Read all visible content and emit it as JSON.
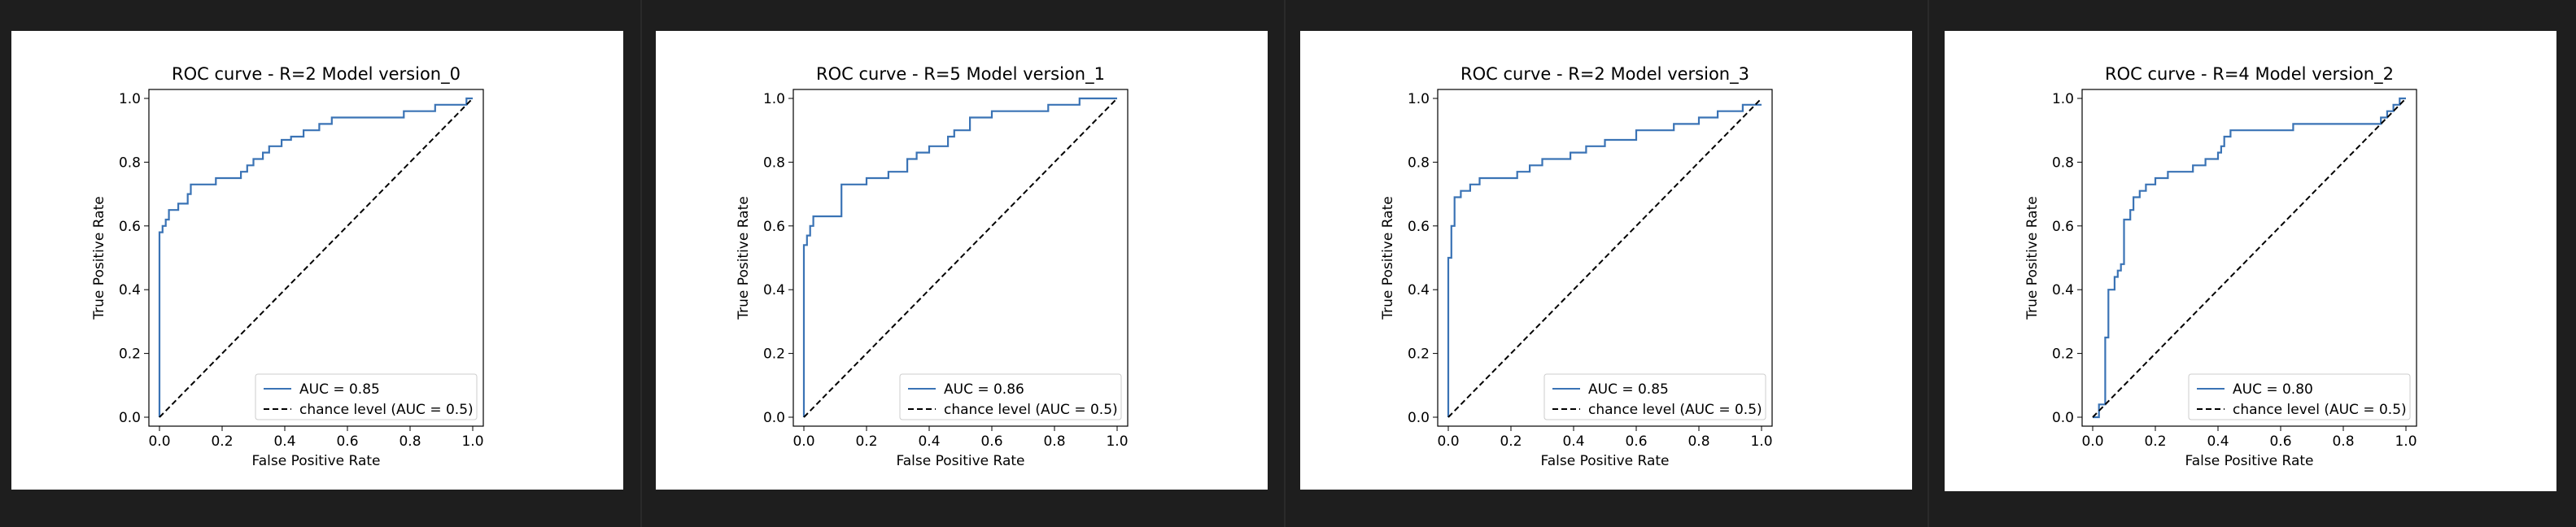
{
  "colors": {
    "roc_line": "#3a73b5",
    "chance_line": "#000000",
    "background": "#1e1e1e",
    "panel": "#ffffff"
  },
  "chart_data": [
    {
      "type": "line",
      "title": "ROC curve - R=2 Model version_0",
      "xlabel": "False Positive Rate",
      "ylabel": "True Positive Rate",
      "xlim": [
        0,
        1
      ],
      "ylim": [
        0,
        1
      ],
      "xticks": [
        "0.0",
        "0.2",
        "0.4",
        "0.6",
        "0.8",
        "1.0"
      ],
      "yticks": [
        "0.0",
        "0.2",
        "0.4",
        "0.6",
        "0.8",
        "1.0"
      ],
      "legend_position": "lower-right",
      "series": [
        {
          "name": "AUC = 0.85",
          "style": "solid",
          "x": [
            0,
            0,
            0.01,
            0.01,
            0.02,
            0.02,
            0.03,
            0.03,
            0.06,
            0.06,
            0.09,
            0.09,
            0.1,
            0.1,
            0.12,
            0.12,
            0.18,
            0.18,
            0.26,
            0.26,
            0.28,
            0.28,
            0.3,
            0.3,
            0.33,
            0.33,
            0.35,
            0.35,
            0.39,
            0.39,
            0.42,
            0.42,
            0.46,
            0.46,
            0.51,
            0.51,
            0.55,
            0.55,
            0.62,
            0.62,
            0.78,
            0.78,
            0.88,
            0.88,
            0.98,
            0.98,
            1.0
          ],
          "y": [
            0,
            0.58,
            0.58,
            0.6,
            0.6,
            0.62,
            0.62,
            0.65,
            0.65,
            0.67,
            0.67,
            0.7,
            0.7,
            0.73,
            0.73,
            0.73,
            0.73,
            0.75,
            0.75,
            0.77,
            0.77,
            0.79,
            0.79,
            0.81,
            0.81,
            0.83,
            0.83,
            0.85,
            0.85,
            0.87,
            0.87,
            0.88,
            0.88,
            0.9,
            0.9,
            0.92,
            0.92,
            0.94,
            0.94,
            0.94,
            0.94,
            0.96,
            0.96,
            0.98,
            0.98,
            1.0,
            1.0
          ]
        },
        {
          "name": "chance level (AUC = 0.5)",
          "style": "dashed",
          "x": [
            0,
            1
          ],
          "y": [
            0,
            1
          ]
        }
      ]
    },
    {
      "type": "line",
      "title": "ROC curve - R=5 Model version_1",
      "xlabel": "False Positive Rate",
      "ylabel": "True Positive Rate",
      "xlim": [
        0,
        1
      ],
      "ylim": [
        0,
        1
      ],
      "xticks": [
        "0.0",
        "0.2",
        "0.4",
        "0.6",
        "0.8",
        "1.0"
      ],
      "yticks": [
        "0.0",
        "0.2",
        "0.4",
        "0.6",
        "0.8",
        "1.0"
      ],
      "legend_position": "lower-right",
      "series": [
        {
          "name": "AUC = 0.86",
          "style": "solid",
          "x": [
            0,
            0,
            0.01,
            0.01,
            0.02,
            0.02,
            0.03,
            0.03,
            0.12,
            0.12,
            0.2,
            0.2,
            0.27,
            0.27,
            0.33,
            0.33,
            0.36,
            0.36,
            0.4,
            0.4,
            0.46,
            0.46,
            0.48,
            0.48,
            0.53,
            0.53,
            0.6,
            0.6,
            0.78,
            0.78,
            0.88,
            0.88,
            1.0
          ],
          "y": [
            0,
            0.54,
            0.54,
            0.57,
            0.57,
            0.6,
            0.6,
            0.63,
            0.63,
            0.73,
            0.73,
            0.75,
            0.75,
            0.77,
            0.77,
            0.81,
            0.81,
            0.83,
            0.83,
            0.85,
            0.85,
            0.88,
            0.88,
            0.9,
            0.9,
            0.94,
            0.94,
            0.96,
            0.96,
            0.98,
            0.98,
            1.0,
            1.0
          ]
        },
        {
          "name": "chance level (AUC = 0.5)",
          "style": "dashed",
          "x": [
            0,
            1
          ],
          "y": [
            0,
            1
          ]
        }
      ]
    },
    {
      "type": "line",
      "title": "ROC curve - R=2 Model version_3",
      "xlabel": "False Positive Rate",
      "ylabel": "True Positive Rate",
      "xlim": [
        0,
        1
      ],
      "ylim": [
        0,
        1
      ],
      "xticks": [
        "0.0",
        "0.2",
        "0.4",
        "0.6",
        "0.8",
        "1.0"
      ],
      "yticks": [
        "0.0",
        "0.2",
        "0.4",
        "0.6",
        "0.8",
        "1.0"
      ],
      "legend_position": "lower-right",
      "series": [
        {
          "name": "AUC = 0.85",
          "style": "solid",
          "x": [
            0,
            0,
            0.01,
            0.01,
            0.02,
            0.02,
            0.04,
            0.04,
            0.07,
            0.07,
            0.1,
            0.1,
            0.22,
            0.22,
            0.26,
            0.26,
            0.3,
            0.3,
            0.39,
            0.39,
            0.44,
            0.44,
            0.5,
            0.5,
            0.6,
            0.6,
            0.72,
            0.72,
            0.8,
            0.8,
            0.86,
            0.86,
            0.94,
            0.94,
            1.0
          ],
          "y": [
            0,
            0.5,
            0.5,
            0.6,
            0.6,
            0.69,
            0.69,
            0.71,
            0.71,
            0.73,
            0.73,
            0.75,
            0.75,
            0.77,
            0.77,
            0.79,
            0.79,
            0.81,
            0.81,
            0.83,
            0.83,
            0.85,
            0.85,
            0.87,
            0.87,
            0.9,
            0.9,
            0.92,
            0.92,
            0.94,
            0.94,
            0.96,
            0.96,
            0.98,
            0.98
          ]
        },
        {
          "name": "chance level (AUC = 0.5)",
          "style": "dashed",
          "x": [
            0,
            1
          ],
          "y": [
            0,
            1
          ]
        }
      ]
    },
    {
      "type": "line",
      "title": "ROC curve - R=4 Model version_2",
      "xlabel": "False Positive Rate",
      "ylabel": "True Positive Rate",
      "xlim": [
        0,
        1
      ],
      "ylim": [
        0,
        1
      ],
      "xticks": [
        "0.0",
        "0.2",
        "0.4",
        "0.6",
        "0.8",
        "1.0"
      ],
      "yticks": [
        "0.0",
        "0.2",
        "0.4",
        "0.6",
        "0.8",
        "1.0"
      ],
      "legend_position": "lower-right",
      "series": [
        {
          "name": "AUC = 0.80",
          "style": "solid",
          "x": [
            0,
            0.02,
            0.02,
            0.04,
            0.04,
            0.05,
            0.05,
            0.07,
            0.07,
            0.08,
            0.08,
            0.09,
            0.09,
            0.1,
            0.1,
            0.12,
            0.12,
            0.13,
            0.13,
            0.15,
            0.15,
            0.17,
            0.17,
            0.2,
            0.2,
            0.24,
            0.24,
            0.32,
            0.32,
            0.36,
            0.36,
            0.4,
            0.4,
            0.41,
            0.41,
            0.42,
            0.42,
            0.44,
            0.44,
            0.64,
            0.64,
            0.92,
            0.92,
            0.94,
            0.94,
            0.96,
            0.96,
            0.98,
            0.98,
            1.0
          ],
          "y": [
            0,
            0,
            0.04,
            0.04,
            0.25,
            0.25,
            0.4,
            0.4,
            0.44,
            0.44,
            0.46,
            0.46,
            0.48,
            0.48,
            0.62,
            0.62,
            0.65,
            0.65,
            0.69,
            0.69,
            0.71,
            0.71,
            0.73,
            0.73,
            0.75,
            0.75,
            0.77,
            0.77,
            0.79,
            0.79,
            0.81,
            0.81,
            0.83,
            0.83,
            0.85,
            0.85,
            0.88,
            0.88,
            0.9,
            0.9,
            0.92,
            0.92,
            0.94,
            0.94,
            0.96,
            0.96,
            0.98,
            0.98,
            1.0,
            1.0
          ]
        },
        {
          "name": "chance level (AUC = 0.5)",
          "style": "dashed",
          "x": [
            0,
            1
          ],
          "y": [
            0,
            1
          ]
        }
      ]
    }
  ]
}
